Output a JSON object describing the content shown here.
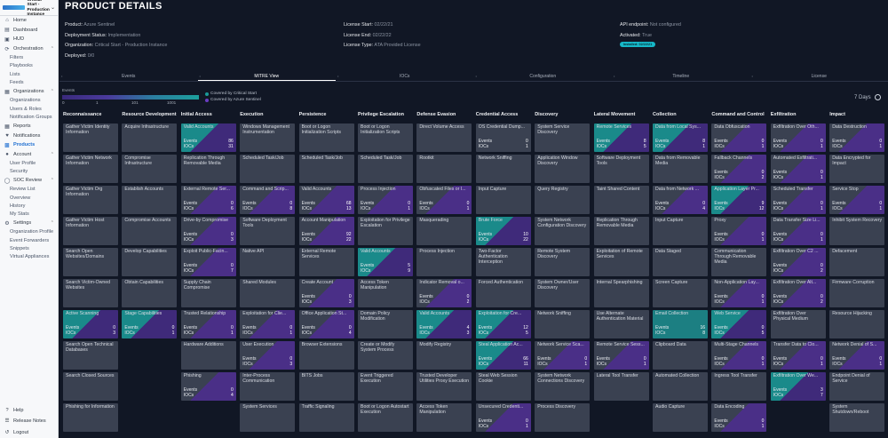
{
  "org": {
    "name": "Critical Start - Production Instance"
  },
  "nav": {
    "home": "Home",
    "dashboard": "Dashboard",
    "hud": "HUD",
    "orchestration": "Orchestration",
    "orch_sub": [
      "Filters",
      "Playbooks",
      "Lists",
      "Feeds"
    ],
    "organizations": "Organizations",
    "org_sub": [
      "Organizations",
      "Users & Roles",
      "Notification Groups"
    ],
    "reports": "Reports",
    "notifications": "Notifications",
    "products": "Products",
    "account": "Account",
    "acct_sub": [
      "User Profile",
      "Security"
    ],
    "soc_review": "SOC Review",
    "soc_sub": [
      "Review List",
      "Overview",
      "History",
      "My Stats"
    ],
    "settings": "Settings",
    "set_sub": [
      "Organization Profile",
      "Event Forwarders",
      "Snippets",
      "Virtual Appliances"
    ],
    "help": "Help",
    "release_notes": "Release Notes",
    "logout": "Logout"
  },
  "page": {
    "title": "PRODUCT DETAILS"
  },
  "info": {
    "product_k": "Product:",
    "product_v": "Azure Sentinel",
    "deploy_k": "Deployment Status:",
    "deploy_v": "Implementation",
    "orgk": "Organization:",
    "orgv": "Critical Start - Production Instance",
    "deployed_k": "Deployed:",
    "deployed_v": "0/0",
    "ls_k": "License Start:",
    "ls_v": "02/22/21",
    "le_k": "License End:",
    "le_v": "02/22/22",
    "lt_k": "License Type:",
    "lt_v": "ATA Provided License",
    "api_k": "API endpoint:",
    "api_v": "Not configured",
    "act_k": "Activated:",
    "act_v": "True",
    "installed": "Installed: 02/22/21"
  },
  "tabs": [
    {
      "label": "Events",
      "count": "•"
    },
    {
      "label": "MITRE View",
      "count": "•"
    },
    {
      "label": "IOCs",
      "count": "•"
    },
    {
      "label": "Configuration",
      "count": "•"
    },
    {
      "label": "Timeline",
      "count": "•"
    },
    {
      "label": "License",
      "count": "•"
    }
  ],
  "legend": {
    "title": "Events",
    "ticks": [
      "0",
      "1",
      "101",
      "1001"
    ],
    "covered_cs": "Covered by Critical Start",
    "covered_as": "Covered by Azure Sentinel",
    "days": "7 Days"
  },
  "colors": {
    "teal": "#1a8a8a",
    "purple": "#4a2f87",
    "cell": "#3a4151"
  },
  "matrix": {
    "ev_label": "Events",
    "io_label": "IOCs",
    "columns": [
      {
        "name": "Reconnaissance",
        "cells": [
          {
            "n": "Gather Victim Identity Information"
          },
          {
            "n": "Gather Victim Network Information"
          },
          {
            "n": "Gather Victim Org Information"
          },
          {
            "n": "Gather Victim Host Information"
          },
          {
            "n": "Search Open Websites/Domains"
          },
          {
            "n": "Search Victim-Owned Websites"
          },
          {
            "n": "Active Scanning",
            "t": "teal",
            "e": "0",
            "i": "3"
          },
          {
            "n": "Search Open Technical Databases"
          },
          {
            "n": "Search Closed Sources"
          },
          {
            "n": "Phishing for Information"
          }
        ]
      },
      {
        "name": "Resource Development",
        "cells": [
          {
            "n": "Acquire Infrastructure"
          },
          {
            "n": "Compromise Infrastructure"
          },
          {
            "n": "Establish Accounts"
          },
          {
            "n": "Compromise Accounts"
          },
          {
            "n": "Develop Capabilities"
          },
          {
            "n": "Obtain Capabilities"
          },
          {
            "n": "Stage Capabilities",
            "t": "teal",
            "e": "0",
            "i": "1"
          }
        ]
      },
      {
        "name": "Initial Access",
        "cells": [
          {
            "n": "Valid Accounts",
            "t": "teal",
            "e": "86",
            "i": "31"
          },
          {
            "n": "Replication Through Removable Media"
          },
          {
            "n": "External Remote Ser...",
            "t": "purple",
            "e": "0",
            "i": "6"
          },
          {
            "n": "Drive-by Compromise",
            "t": "purple",
            "e": "0",
            "i": "3"
          },
          {
            "n": "Exploit Public-Facin...",
            "t": "purple",
            "e": "0",
            "i": "7"
          },
          {
            "n": "Supply Chain Compromise"
          },
          {
            "n": "Trusted Relationship",
            "t": "purple",
            "e": "0",
            "i": "1"
          },
          {
            "n": "Hardware Additions"
          },
          {
            "n": "Phishing",
            "t": "purple",
            "e": "0",
            "i": "4"
          }
        ]
      },
      {
        "name": "Execution",
        "cells": [
          {
            "n": "Windows Management Instrumentation"
          },
          {
            "n": "Scheduled Task/Job"
          },
          {
            "n": "Command and Scrip...",
            "t": "purple",
            "e": "0",
            "i": "8"
          },
          {
            "n": "Software Deployment Tools"
          },
          {
            "n": "Native API"
          },
          {
            "n": "Shared Modules"
          },
          {
            "n": "Exploitation for Clie...",
            "t": "purple",
            "e": "0",
            "i": "1"
          },
          {
            "n": "User Execution",
            "t": "purple",
            "e": "0",
            "i": "3"
          },
          {
            "n": "Inter-Process Communication"
          },
          {
            "n": "System Services"
          }
        ]
      },
      {
        "name": "Persistence",
        "cells": [
          {
            "n": "Boot or Logon Initialization Scripts"
          },
          {
            "n": "Scheduled Task/Job"
          },
          {
            "n": "Valid Accounts",
            "t": "purple",
            "e": "68",
            "i": "13"
          },
          {
            "n": "Account Manipulation",
            "t": "purple",
            "e": "92",
            "i": "22"
          },
          {
            "n": "External Remote Services"
          },
          {
            "n": "Create Account",
            "t": "purple",
            "e": "0",
            "i": "3"
          },
          {
            "n": "Office Application St...",
            "t": "purple",
            "e": "0",
            "i": "4"
          },
          {
            "n": "Browser Extensions"
          },
          {
            "n": "BITS Jobs"
          },
          {
            "n": "Traffic Signaling"
          }
        ]
      },
      {
        "name": "Privilege Escalation",
        "cells": [
          {
            "n": "Boot or Logon Initialization Scripts"
          },
          {
            "n": "Scheduled Task/Job"
          },
          {
            "n": "Process Injection",
            "t": "purple",
            "e": "0",
            "i": "1"
          },
          {
            "n": "Exploitation for Privilege Escalation"
          },
          {
            "n": "Valid Accounts",
            "t": "teal",
            "e": "5",
            "i": "9"
          },
          {
            "n": "Access Token Manipulation"
          },
          {
            "n": "Domain Policy Modification"
          },
          {
            "n": "Create or Modify System Process"
          },
          {
            "n": "Event Triggered Execution"
          },
          {
            "n": "Boot or Logon Autostart Execution"
          }
        ]
      },
      {
        "name": "Defense Evasion",
        "cells": [
          {
            "n": "Direct Volume Access"
          },
          {
            "n": "Rootkit"
          },
          {
            "n": "Obfuscated Files or I...",
            "t": "purple",
            "e": "0",
            "i": "1"
          },
          {
            "n": "Masquerading"
          },
          {
            "n": "Process Injection"
          },
          {
            "n": "Indicator Removal o...",
            "t": "purple",
            "e": "0",
            "i": "2"
          },
          {
            "n": "Valid Accounts",
            "t": "teal",
            "e": "4",
            "i": "3"
          },
          {
            "n": "Modify Registry"
          },
          {
            "n": "Trusted Developer Utilities Proxy Execution"
          },
          {
            "n": "Access Token Manipulation"
          }
        ]
      },
      {
        "name": "Credential Access",
        "cells": [
          {
            "n": "OS Credential Dump...",
            "e": "0",
            "i": "1"
          },
          {
            "n": "Network Sniffing"
          },
          {
            "n": "Input Capture"
          },
          {
            "n": "Brute Force",
            "t": "teal",
            "e": "10",
            "i": "22"
          },
          {
            "n": "Two-Factor Authentication Interception"
          },
          {
            "n": "Forced Authentication"
          },
          {
            "n": "Exploitation for Cre...",
            "t": "teal",
            "e": "12",
            "i": "5"
          },
          {
            "n": "Steal Application Ac...",
            "t": "teal",
            "e": "66",
            "i": "11"
          },
          {
            "n": "Steal Web Session Cookie"
          },
          {
            "n": "Unsecured Credenti...",
            "t": "purple",
            "e": "0",
            "i": "1"
          }
        ]
      },
      {
        "name": "Discovery",
        "cells": [
          {
            "n": "System Service Discovery"
          },
          {
            "n": "Application Window Discovery"
          },
          {
            "n": "Query Registry"
          },
          {
            "n": "System Network Configuration Discovery"
          },
          {
            "n": "Remote System Discovery"
          },
          {
            "n": "System Owner/User Discovery"
          },
          {
            "n": "Network Sniffing"
          },
          {
            "n": "Network Service Sca...",
            "t": "purple",
            "e": "0",
            "i": "1"
          },
          {
            "n": "System Network Connections Discovery"
          },
          {
            "n": "Process Discovery"
          }
        ]
      },
      {
        "name": "Lateral Movement",
        "cells": [
          {
            "n": "Remote Services",
            "t": "teal",
            "e": "8",
            "i": "5"
          },
          {
            "n": "Software Deployment Tools"
          },
          {
            "n": "Taint Shared Content"
          },
          {
            "n": "Replication Through Removable Media"
          },
          {
            "n": "Exploitation of Remote Services"
          },
          {
            "n": "Internal Spearphishing"
          },
          {
            "n": "Use Alternate Authentication Material"
          },
          {
            "n": "Remote Service Sess...",
            "t": "purple",
            "e": "0",
            "i": "1"
          },
          {
            "n": "Lateral Tool Transfer"
          }
        ]
      },
      {
        "name": "Collection",
        "cells": [
          {
            "n": "Data from Local Sys...",
            "t": "teal",
            "e": "8",
            "i": "1"
          },
          {
            "n": "Data from Removable Media"
          },
          {
            "n": "Data from Network ...",
            "t": "purple",
            "e": "0",
            "i": "4"
          },
          {
            "n": "Input Capture"
          },
          {
            "n": "Data Staged"
          },
          {
            "n": "Screen Capture"
          },
          {
            "n": "Email Collection",
            "t": "tealonly",
            "e": "16",
            "i": "8"
          },
          {
            "n": "Clipboard Data"
          },
          {
            "n": "Automated Collection"
          },
          {
            "n": "Audio Capture"
          }
        ]
      },
      {
        "name": "Command and Control",
        "cells": [
          {
            "n": "Data Obfuscation",
            "t": "purple",
            "e": "0",
            "i": "1"
          },
          {
            "n": "Fallback Channels",
            "t": "purple",
            "e": "0",
            "i": "2"
          },
          {
            "n": "Application Layer Pr...",
            "t": "teal",
            "e": "9",
            "i": "12"
          },
          {
            "n": "Proxy",
            "t": "purple",
            "e": "0",
            "i": "1"
          },
          {
            "n": "Communication Through Removable Media"
          },
          {
            "n": "Non-Application Lay...",
            "t": "purple",
            "e": "0",
            "i": "1"
          },
          {
            "n": "Web Service",
            "t": "teal",
            "e": "0",
            "i": "5"
          },
          {
            "n": "Multi-Stage Channels",
            "t": "purple",
            "e": "0",
            "i": "1"
          },
          {
            "n": "Ingress Tool Transfer"
          },
          {
            "n": "Data Encoding",
            "t": "purple",
            "e": "0",
            "i": "1"
          }
        ]
      },
      {
        "name": "Exfiltration",
        "cells": [
          {
            "n": "Exfiltration Over Oth...",
            "t": "purple",
            "e": "0",
            "i": "1"
          },
          {
            "n": "Automated Exfiltrati...",
            "t": "purple",
            "e": "0",
            "i": "1"
          },
          {
            "n": "Scheduled Transfer",
            "t": "purple",
            "e": "0",
            "i": "1"
          },
          {
            "n": "Data Transfer Size Li...",
            "t": "purple",
            "e": "0",
            "i": "1"
          },
          {
            "n": "Exfiltration Over C2 ...",
            "t": "purple",
            "e": "0",
            "i": "2"
          },
          {
            "n": "Exfiltration Over Alt...",
            "t": "purple",
            "e": "0",
            "i": "2"
          },
          {
            "n": "Exfiltration Over Physical Medium"
          },
          {
            "n": "Transfer Data to Clo...",
            "t": "purple",
            "e": "0",
            "i": "1"
          },
          {
            "n": "Exfiltration Over We...",
            "t": "teal",
            "e": "3",
            "i": "7"
          }
        ]
      },
      {
        "name": "Impact",
        "cells": [
          {
            "n": "Data Destruction",
            "t": "purple",
            "e": "0",
            "i": "1"
          },
          {
            "n": "Data Encrypted for Impact"
          },
          {
            "n": "Service Stop",
            "t": "purple",
            "e": "0",
            "i": "1"
          },
          {
            "n": "Inhibit System Recovery"
          },
          {
            "n": "Defacement"
          },
          {
            "n": "Firmware Corruption"
          },
          {
            "n": "Resource Hijacking"
          },
          {
            "n": "Network Denial of S...",
            "t": "purple",
            "e": "0",
            "i": "1"
          },
          {
            "n": "Endpoint Denial of Service"
          },
          {
            "n": "System Shutdown/Reboot"
          }
        ]
      }
    ]
  }
}
